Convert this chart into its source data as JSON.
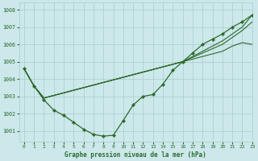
{
  "title": "Graphe pression niveau de la mer (hPa)",
  "bg_color": "#cce8ea",
  "plot_bg_color": "#cce8ea",
  "grid_color": "#aacbcc",
  "line_color": "#2d6a2d",
  "marker_color": "#2d6a2d",
  "xlim": [
    -0.5,
    23
  ],
  "ylim": [
    1000.4,
    1008.4
  ],
  "yticks": [
    1001,
    1002,
    1003,
    1004,
    1005,
    1006,
    1007,
    1008
  ],
  "xticks": [
    0,
    1,
    2,
    3,
    4,
    5,
    6,
    7,
    8,
    9,
    10,
    11,
    12,
    13,
    14,
    15,
    16,
    17,
    18,
    19,
    20,
    21,
    22,
    23
  ],
  "series_main": [
    1004.6,
    1003.6,
    1002.8,
    1002.2,
    1001.9,
    1001.5,
    1001.1,
    1000.8,
    1000.7,
    1000.75,
    1001.6,
    1002.5,
    1003.0,
    1003.1,
    1003.7,
    1004.5,
    1005.0,
    1005.5,
    1006.0,
    1006.3,
    1006.6,
    1007.0,
    1007.3,
    1007.7
  ],
  "series_line1": [
    1004.6,
    1003.6,
    1002.9,
    1003.05,
    1003.2,
    1003.35,
    1003.5,
    1003.65,
    1003.8,
    1003.95,
    1004.1,
    1004.25,
    1004.4,
    1004.55,
    1004.7,
    1004.85,
    1005.0,
    1005.3,
    1005.6,
    1005.9,
    1006.2,
    1006.6,
    1007.0,
    1007.7
  ],
  "series_line2": [
    1004.6,
    1003.6,
    1002.9,
    1003.05,
    1003.2,
    1003.35,
    1003.5,
    1003.65,
    1003.8,
    1003.95,
    1004.1,
    1004.25,
    1004.4,
    1004.55,
    1004.7,
    1004.85,
    1005.0,
    1005.25,
    1005.5,
    1005.75,
    1006.0,
    1006.4,
    1006.8,
    1007.3
  ],
  "series_line3": [
    1004.6,
    1003.6,
    1002.9,
    1003.05,
    1003.2,
    1003.35,
    1003.5,
    1003.65,
    1003.8,
    1003.95,
    1004.1,
    1004.25,
    1004.4,
    1004.55,
    1004.7,
    1004.85,
    1005.0,
    1005.15,
    1005.3,
    1005.45,
    1005.6,
    1005.9,
    1006.1,
    1006.0
  ]
}
